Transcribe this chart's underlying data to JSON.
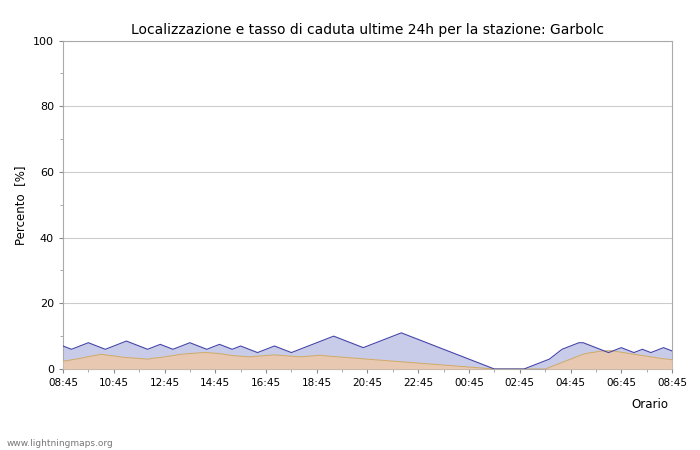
{
  "title": "Localizzazione e tasso di caduta ultime 24h per la stazione: Garbolc",
  "ylabel": "Percento  [%]",
  "xlabel": "Orario",
  "ylim": [
    0,
    100
  ],
  "yticks": [
    0,
    20,
    40,
    60,
    80,
    100
  ],
  "yticks_minor": [
    10,
    30,
    50,
    70,
    90
  ],
  "x_labels": [
    "08:45",
    "10:45",
    "12:45",
    "14:45",
    "16:45",
    "18:45",
    "20:45",
    "22:45",
    "00:45",
    "02:45",
    "04:45",
    "06:45",
    "08:45"
  ],
  "n_points": 145,
  "fill_rete_color": "#e8c8b0",
  "fill_garbolc_color": "#c8cce8",
  "line_rete_color": "#d4aa60",
  "line_garbolc_color": "#4444aa",
  "background_color": "#ffffff",
  "grid_color": "#cccccc",
  "watermark": "www.lightningmaps.org",
  "rete_fill_data": [
    2.5,
    2.5,
    2.8,
    3.0,
    3.2,
    3.5,
    3.8,
    4.0,
    4.2,
    4.5,
    4.3,
    4.1,
    4.0,
    3.8,
    3.6,
    3.5,
    3.4,
    3.3,
    3.2,
    3.1,
    3.0,
    3.2,
    3.4,
    3.5,
    3.7,
    3.9,
    4.1,
    4.3,
    4.5,
    4.6,
    4.7,
    4.8,
    4.9,
    5.0,
    5.0,
    4.9,
    4.8,
    4.7,
    4.5,
    4.3,
    4.1,
    4.0,
    3.9,
    3.8,
    3.7,
    3.8,
    3.9,
    4.0,
    4.1,
    4.2,
    4.3,
    4.2,
    4.1,
    4.0,
    3.9,
    3.8,
    3.7,
    3.8,
    3.9,
    4.0,
    4.1,
    4.2,
    4.0,
    3.9,
    3.8,
    3.7,
    3.6,
    3.5,
    3.4,
    3.3,
    3.2,
    3.1,
    3.0,
    2.9,
    2.8,
    2.7,
    2.6,
    2.5,
    2.4,
    2.3,
    2.2,
    2.1,
    2.0,
    1.9,
    1.8,
    1.7,
    1.6,
    1.5,
    1.4,
    1.3,
    1.2,
    1.1,
    1.0,
    0.9,
    0.8,
    0.7,
    0.6,
    0.5,
    0.4,
    0.3,
    0.2,
    0.1,
    0.0,
    0.0,
    0.0,
    0.0,
    0.0,
    0.0,
    0.0,
    0.0,
    0.0,
    0.0,
    0.0,
    0.0,
    0.0,
    0.5,
    1.0,
    1.5,
    2.0,
    2.5,
    3.0,
    3.5,
    4.0,
    4.5,
    4.8,
    5.0,
    5.2,
    5.4,
    5.5,
    5.6,
    5.5,
    5.3,
    5.1,
    4.9,
    4.7,
    4.5,
    4.3,
    4.1,
    3.9,
    3.7,
    3.5,
    3.3,
    3.1,
    3.0,
    2.8
  ],
  "garbolc_fill_data": [
    7.0,
    6.5,
    6.0,
    6.5,
    7.0,
    7.5,
    8.0,
    7.5,
    7.0,
    6.5,
    6.0,
    6.5,
    7.0,
    7.5,
    8.0,
    8.5,
    8.0,
    7.5,
    7.0,
    6.5,
    6.0,
    6.5,
    7.0,
    7.5,
    7.0,
    6.5,
    6.0,
    6.5,
    7.0,
    7.5,
    8.0,
    7.5,
    7.0,
    6.5,
    6.0,
    6.5,
    7.0,
    7.5,
    7.0,
    6.5,
    6.0,
    6.5,
    7.0,
    6.5,
    6.0,
    5.5,
    5.0,
    5.5,
    6.0,
    6.5,
    7.0,
    6.5,
    6.0,
    5.5,
    5.0,
    5.5,
    6.0,
    6.5,
    7.0,
    7.5,
    8.0,
    8.5,
    9.0,
    9.5,
    10.0,
    9.5,
    9.0,
    8.5,
    8.0,
    7.5,
    7.0,
    6.5,
    7.0,
    7.5,
    8.0,
    8.5,
    9.0,
    9.5,
    10.0,
    10.5,
    11.0,
    10.5,
    10.0,
    9.5,
    9.0,
    8.5,
    8.0,
    7.5,
    7.0,
    6.5,
    6.0,
    5.5,
    5.0,
    4.5,
    4.0,
    3.5,
    3.0,
    2.5,
    2.0,
    1.5,
    1.0,
    0.5,
    0.0,
    0.0,
    0.0,
    0.0,
    0.0,
    0.0,
    0.0,
    0.0,
    0.5,
    1.0,
    1.5,
    2.0,
    2.5,
    3.0,
    4.0,
    5.0,
    6.0,
    6.5,
    7.0,
    7.5,
    8.0,
    8.0,
    7.5,
    7.0,
    6.5,
    6.0,
    5.5,
    5.0,
    5.5,
    6.0,
    6.5,
    6.0,
    5.5,
    5.0,
    5.5,
    6.0,
    5.5,
    5.0,
    5.5,
    6.0,
    6.5,
    6.0,
    5.5
  ]
}
